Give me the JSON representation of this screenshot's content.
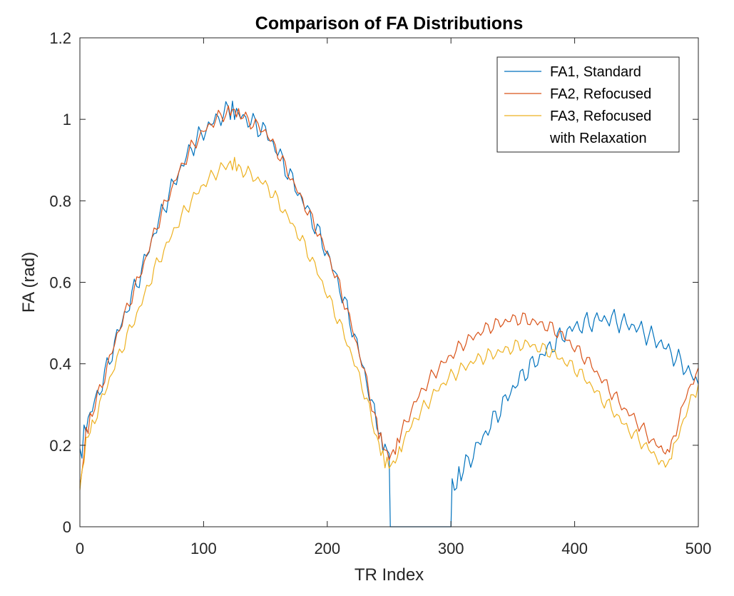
{
  "chart_data": {
    "type": "line",
    "title": "Comparison of FA Distributions",
    "xlabel": "TR Index",
    "ylabel": "FA (rad)",
    "xlim": [
      0,
      500
    ],
    "ylim": [
      0,
      1.2
    ],
    "xticks": [
      0,
      100,
      200,
      300,
      400,
      500
    ],
    "xtick_labels": [
      "0",
      "100",
      "200",
      "300",
      "400",
      "500"
    ],
    "yticks": [
      0,
      0.2,
      0.4,
      0.6,
      0.8,
      1,
      1.2
    ],
    "ytick_labels": [
      "0",
      "0.2",
      "0.4",
      "0.6",
      "0.8",
      "1",
      "1.2"
    ],
    "grid": false,
    "legend_position": "top-right",
    "series": [
      {
        "name": "FA1, Standard",
        "legend_lines": [
          "FA1, Standard"
        ],
        "color": "#0072BD",
        "x": [
          0,
          5,
          10,
          20,
          30,
          40,
          50,
          60,
          70,
          80,
          90,
          100,
          110,
          120,
          125,
          130,
          140,
          150,
          160,
          170,
          180,
          190,
          200,
          210,
          220,
          230,
          240,
          245,
          250,
          251,
          300,
          301,
          310,
          320,
          330,
          340,
          350,
          360,
          370,
          380,
          390,
          400,
          410,
          420,
          430,
          440,
          450,
          460,
          470,
          480,
          490,
          500
        ],
        "y": [
          0.17,
          0.25,
          0.29,
          0.37,
          0.47,
          0.55,
          0.63,
          0.72,
          0.8,
          0.87,
          0.93,
          0.97,
          1.0,
          1.02,
          1.02,
          1.01,
          0.99,
          0.97,
          0.92,
          0.86,
          0.8,
          0.74,
          0.67,
          0.59,
          0.49,
          0.38,
          0.25,
          0.2,
          0.18,
          0,
          0,
          0.09,
          0.14,
          0.19,
          0.24,
          0.29,
          0.34,
          0.38,
          0.41,
          0.44,
          0.47,
          0.49,
          0.5,
          0.51,
          0.51,
          0.5,
          0.49,
          0.47,
          0.45,
          0.42,
          0.39,
          0.35
        ]
      },
      {
        "name": "FA2, Refocused",
        "legend_lines": [
          "FA2, Refocused"
        ],
        "color": "#D95319",
        "x": [
          0,
          5,
          10,
          20,
          30,
          40,
          50,
          60,
          70,
          80,
          90,
          100,
          110,
          120,
          125,
          130,
          140,
          150,
          160,
          170,
          180,
          190,
          200,
          210,
          220,
          230,
          240,
          245,
          250,
          255,
          260,
          270,
          280,
          290,
          300,
          310,
          320,
          330,
          340,
          350,
          360,
          370,
          380,
          390,
          400,
          410,
          420,
          430,
          440,
          450,
          460,
          470,
          475,
          480,
          490,
          500
        ],
        "y": [
          0.09,
          0.23,
          0.28,
          0.37,
          0.47,
          0.55,
          0.63,
          0.72,
          0.8,
          0.87,
          0.93,
          0.97,
          1.0,
          1.02,
          1.02,
          1.01,
          0.99,
          0.97,
          0.92,
          0.86,
          0.8,
          0.74,
          0.67,
          0.59,
          0.49,
          0.38,
          0.25,
          0.2,
          0.17,
          0.19,
          0.23,
          0.3,
          0.35,
          0.39,
          0.42,
          0.45,
          0.47,
          0.49,
          0.5,
          0.51,
          0.51,
          0.5,
          0.49,
          0.47,
          0.44,
          0.41,
          0.37,
          0.33,
          0.29,
          0.26,
          0.22,
          0.19,
          0.18,
          0.22,
          0.32,
          0.39
        ]
      },
      {
        "name": "FA3, Refocused with Relaxation",
        "legend_lines": [
          "FA3, Refocused",
          "with Relaxation"
        ],
        "color": "#EDB120",
        "x": [
          0,
          5,
          10,
          20,
          30,
          40,
          50,
          60,
          70,
          80,
          90,
          100,
          110,
          120,
          125,
          130,
          140,
          150,
          160,
          170,
          180,
          190,
          200,
          210,
          220,
          230,
          240,
          245,
          250,
          255,
          260,
          270,
          280,
          290,
          300,
          310,
          320,
          330,
          340,
          350,
          360,
          370,
          380,
          390,
          400,
          410,
          420,
          430,
          440,
          450,
          460,
          470,
          475,
          480,
          490,
          500
        ],
        "y": [
          0.09,
          0.21,
          0.25,
          0.33,
          0.41,
          0.48,
          0.55,
          0.63,
          0.69,
          0.75,
          0.8,
          0.84,
          0.87,
          0.89,
          0.89,
          0.88,
          0.86,
          0.84,
          0.8,
          0.75,
          0.7,
          0.64,
          0.57,
          0.5,
          0.42,
          0.33,
          0.22,
          0.17,
          0.15,
          0.16,
          0.2,
          0.26,
          0.3,
          0.34,
          0.37,
          0.39,
          0.41,
          0.42,
          0.43,
          0.44,
          0.45,
          0.44,
          0.43,
          0.41,
          0.39,
          0.36,
          0.32,
          0.29,
          0.25,
          0.22,
          0.19,
          0.16,
          0.15,
          0.19,
          0.28,
          0.35
        ]
      }
    ]
  }
}
